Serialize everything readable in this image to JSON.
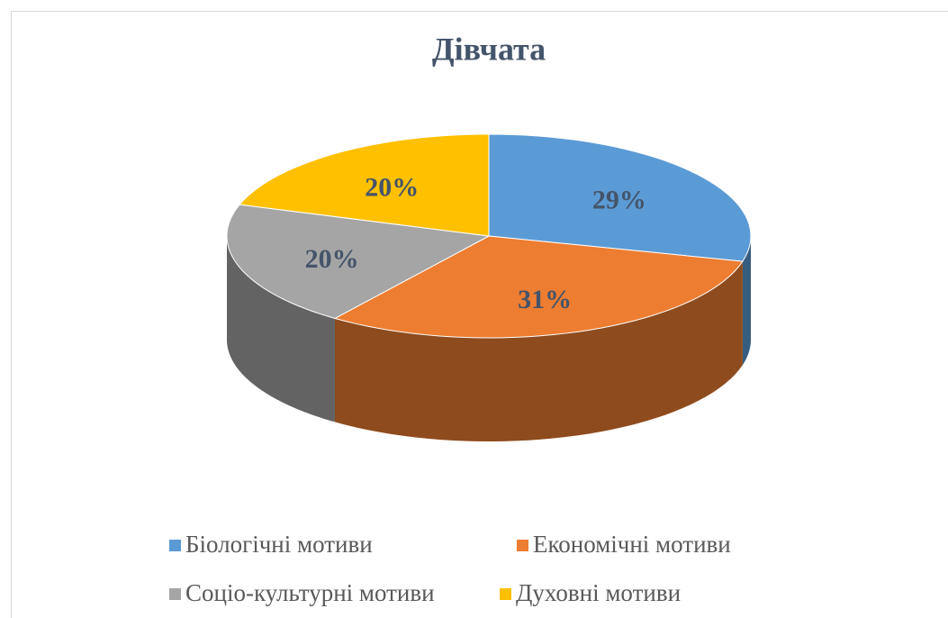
{
  "chart_data": {
    "type": "pie",
    "title": "Дівчата",
    "categories": [
      "Біологічні мотиви",
      "Економічні мотиви",
      "Соціо-культурні мотиви",
      "Духовні мотиви"
    ],
    "values": [
      29,
      31,
      20,
      20
    ],
    "value_labels": [
      "29%",
      "31%",
      "20%",
      "20%"
    ],
    "colors": [
      "#5b9bd5",
      "#ed7d31",
      "#a5a5a5",
      "#ffc000"
    ],
    "legend": "bottom"
  }
}
